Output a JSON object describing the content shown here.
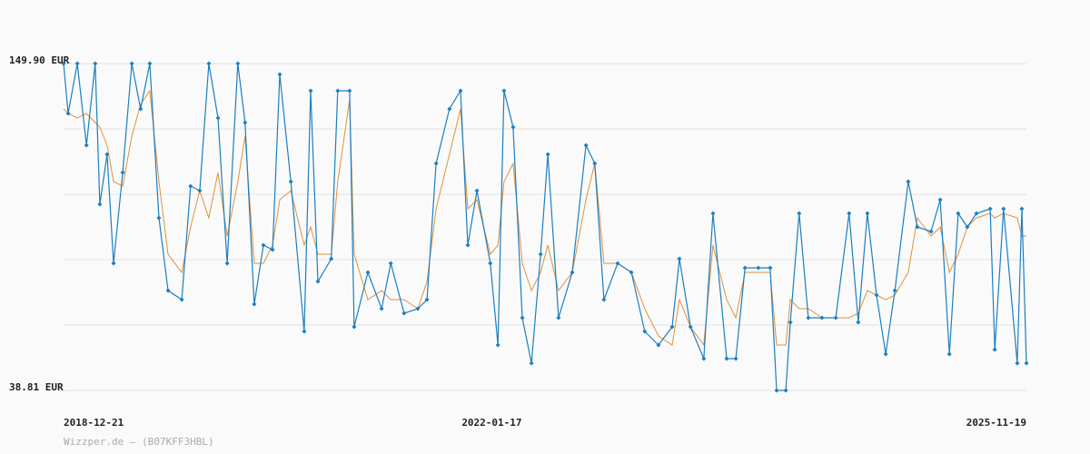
{
  "chart_data": {
    "type": "line",
    "source": "Wizzper.de – (B07KFF3HBL)",
    "x": [
      "2018-12-21",
      "2019-01-02",
      "2019-01-26",
      "2019-02-19",
      "2019-03-14",
      "2019-03-26",
      "2019-04-14",
      "2019-05-01",
      "2019-05-25",
      "2019-06-18",
      "2019-07-11",
      "2019-08-04",
      "2019-08-28",
      "2019-09-21",
      "2019-10-27",
      "2019-11-19",
      "2019-12-13",
      "2020-01-06",
      "2020-01-30",
      "2020-02-23",
      "2020-03-22",
      "2020-04-10",
      "2020-05-04",
      "2020-05-28",
      "2020-06-21",
      "2020-07-10",
      "2020-08-08",
      "2020-09-12",
      "2020-09-29",
      "2020-10-18",
      "2020-11-22",
      "2020-12-09",
      "2021-01-09",
      "2021-01-21",
      "2021-02-26",
      "2021-04-03",
      "2021-04-27",
      "2021-06-01",
      "2021-07-07",
      "2021-07-31",
      "2021-08-24",
      "2021-09-28",
      "2021-10-27",
      "2021-11-15",
      "2021-12-09",
      "2022-01-13",
      "2022-02-02",
      "2022-02-18",
      "2022-03-14",
      "2022-04-07",
      "2022-05-01",
      "2022-05-25",
      "2022-06-13",
      "2022-07-11",
      "2022-08-16",
      "2022-09-21",
      "2022-10-14",
      "2022-11-07",
      "2022-12-13",
      "2023-01-18",
      "2023-02-22",
      "2023-03-30",
      "2023-05-05",
      "2023-05-24",
      "2023-06-22",
      "2023-07-27",
      "2023-08-20",
      "2023-09-25",
      "2023-10-19",
      "2023-11-12",
      "2023-12-17",
      "2024-01-17",
      "2024-02-03",
      "2024-02-27",
      "2024-03-10",
      "2024-04-02",
      "2024-04-26",
      "2024-06-01",
      "2024-07-07",
      "2024-08-11",
      "2024-09-04",
      "2024-09-28",
      "2024-10-22",
      "2024-11-15",
      "2024-12-09",
      "2025-01-13",
      "2025-02-06",
      "2025-03-14",
      "2025-04-07",
      "2025-05-01",
      "2025-05-24",
      "2025-06-17",
      "2025-07-11",
      "2025-08-16",
      "2025-08-28",
      "2025-09-20",
      "2025-10-26",
      "2025-11-07",
      "2025-11-19"
    ],
    "series": [
      {
        "color": "#1a7fc1",
        "markers": true,
        "values": [
          149.9,
          132.93,
          149.9,
          122.13,
          149.9,
          102.07,
          119.04,
          82.01,
          112.87,
          149.9,
          134.47,
          149.9,
          97.44,
          72.76,
          69.67,
          108.24,
          106.7,
          149.9,
          131.39,
          82.01,
          149.9,
          129.84,
          68.13,
          88.18,
          86.64,
          146.2,
          109.78,
          58.87,
          140.64,
          75.84,
          83.56,
          140.64,
          140.64,
          60.41,
          78.93,
          66.58,
          82.01,
          65.04,
          66.58,
          69.67,
          115.96,
          134.47,
          140.64,
          88.18,
          106.7,
          82.01,
          54.24,
          140.64,
          128.3,
          63.5,
          48.07,
          85.1,
          119.04,
          63.5,
          78.93,
          122.13,
          115.96,
          69.67,
          82.01,
          78.93,
          58.87,
          54.24,
          60.41,
          83.56,
          60.41,
          49.61,
          98.98,
          49.61,
          49.61,
          80.47,
          80.47,
          80.47,
          38.81,
          38.81,
          61.95,
          98.98,
          63.5,
          63.5,
          63.5,
          98.98,
          61.95,
          98.98,
          71.21,
          51.15,
          72.76,
          109.78,
          94.36,
          92.81,
          103.61,
          51.15,
          98.98,
          94.36,
          98.98,
          100.53,
          52.7,
          100.53,
          48.07,
          100.53,
          48.07
        ]
      },
      {
        "color": "#e0903a",
        "markers": false,
        "values": [
          134.47,
          132.93,
          131.39,
          132.93,
          129.84,
          128.3,
          122.13,
          109.78,
          108.24,
          125.21,
          136.01,
          140.64,
          109.78,
          85.1,
          78.93,
          94.36,
          106.7,
          97.44,
          112.87,
          91.27,
          109.78,
          125.21,
          82.01,
          82.01,
          88.18,
          103.61,
          106.7,
          88.18,
          94.36,
          85.1,
          85.1,
          109.78,
          137.56,
          85.1,
          69.67,
          72.76,
          69.67,
          69.67,
          66.58,
          75.84,
          100.53,
          119.04,
          134.47,
          100.53,
          103.61,
          85.1,
          88.18,
          109.78,
          115.96,
          82.01,
          72.76,
          78.93,
          88.18,
          72.76,
          78.93,
          103.61,
          115.96,
          82.01,
          82.01,
          78.93,
          66.58,
          57.33,
          54.24,
          69.67,
          60.41,
          54.24,
          88.18,
          69.67,
          63.5,
          78.93,
          78.93,
          78.93,
          54.24,
          54.24,
          69.67,
          66.58,
          66.58,
          63.5,
          63.5,
          63.5,
          65.04,
          72.76,
          71.21,
          69.67,
          71.21,
          78.93,
          97.44,
          91.27,
          94.36,
          78.93,
          85.1,
          94.36,
          97.44,
          98.98,
          97.44,
          98.98,
          97.44,
          91.27,
          91.27
        ]
      }
    ],
    "xlim": [
      "2018-12-21",
      "2025-11-19"
    ],
    "xticks": [
      "2018-12-21",
      "2022-01-17",
      "2025-11-19"
    ],
    "ylim": [
      38.81,
      149.9
    ],
    "yticks": [
      {
        "value": 38.81,
        "label": "38.81 EUR"
      },
      {
        "value": 61.028,
        "label": null
      },
      {
        "value": 83.246,
        "label": null
      },
      {
        "value": 105.464,
        "label": null
      },
      {
        "value": 127.682,
        "label": null
      },
      {
        "value": 149.9,
        "label": "149.90 EUR"
      }
    ],
    "grid": true
  }
}
